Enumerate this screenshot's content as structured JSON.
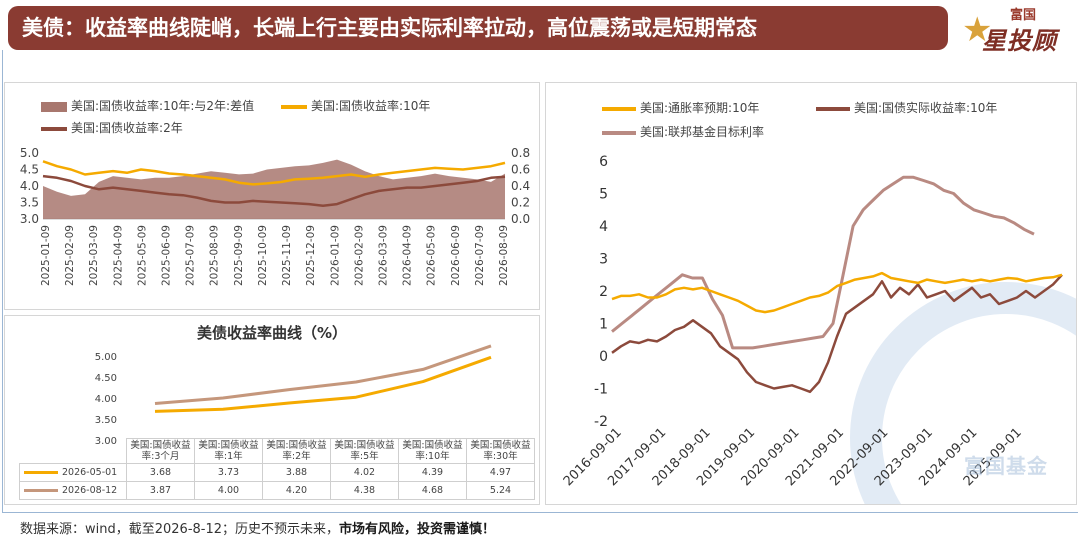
{
  "header": {
    "title": "美债：收益率曲线陡峭，长端上行主要由实际利率拉动，高位震荡或是短期常态"
  },
  "brand": {
    "small": "富国",
    "big": "星投顾"
  },
  "watermark": "富国基金",
  "footer": {
    "source": "数据来源：wind，截至2026-8-12；历史不预示未来，",
    "warning": "市场有风险，投资需谨慎！"
  },
  "colors": {
    "header_bg": "#8a3b32",
    "spread": "#a8776e",
    "yield10": "#f5aa00",
    "yield2": "#8c4a3c",
    "tips10": "#8c4a3c",
    "fed": "#b98a82",
    "curve_older": "#c5977c",
    "curve_newer": "#f5aa00"
  },
  "chart_data": [
    {
      "id": "top-left",
      "type": "line",
      "legend": [
        "美国:国债收益率:10年:与2年:差值",
        "美国:国债收益率:10年",
        "美国:国债收益率:2年"
      ],
      "x_ticks": [
        "2025-01-09",
        "2025-02-09",
        "2025-03-09",
        "2025-04-09",
        "2025-05-09",
        "2025-06-09",
        "2025-07-09",
        "2025-08-09",
        "2025-09-09",
        "2025-10-09",
        "2025-11-09",
        "2025-12-09",
        "2026-01-09",
        "2026-02-09",
        "2026-03-09",
        "2026-04-09",
        "2026-05-09",
        "2026-06-09",
        "2026-07-09",
        "2026-08-09"
      ],
      "yleft_ticks": [
        "5.0",
        "4.5",
        "4.0",
        "3.5",
        "3.0"
      ],
      "yright_ticks": [
        "0.8",
        "0.6",
        "0.4",
        "0.2",
        "0.0"
      ],
      "ylim_left": [
        3.0,
        5.0
      ],
      "ylim_right": [
        0.0,
        0.8
      ],
      "series": [
        {
          "name": "美国:国债收益率:10年:与2年:差值",
          "axis": "right",
          "type": "area",
          "values": [
            0.4,
            0.33,
            0.28,
            0.3,
            0.45,
            0.52,
            0.5,
            0.48,
            0.5,
            0.5,
            0.52,
            0.55,
            0.58,
            0.56,
            0.54,
            0.55,
            0.6,
            0.62,
            0.64,
            0.65,
            0.68,
            0.72,
            0.66,
            0.58,
            0.52,
            0.48,
            0.5,
            0.52,
            0.55,
            0.52,
            0.5,
            0.48,
            0.45,
            0.55
          ]
        },
        {
          "name": "美国:国债收益率:10年",
          "axis": "left",
          "type": "line",
          "values": [
            4.75,
            4.6,
            4.5,
            4.35,
            4.4,
            4.45,
            4.4,
            4.5,
            4.45,
            4.38,
            4.35,
            4.3,
            4.25,
            4.2,
            4.1,
            4.05,
            4.08,
            4.12,
            4.2,
            4.22,
            4.25,
            4.3,
            4.35,
            4.28,
            4.35,
            4.4,
            4.45,
            4.5,
            4.55,
            4.52,
            4.5,
            4.55,
            4.6,
            4.7
          ]
        },
        {
          "name": "美国:国债收益率:2年",
          "axis": "left",
          "type": "line",
          "values": [
            4.3,
            4.25,
            4.15,
            4.0,
            3.9,
            3.95,
            3.9,
            3.85,
            3.8,
            3.75,
            3.72,
            3.65,
            3.55,
            3.5,
            3.5,
            3.55,
            3.52,
            3.5,
            3.48,
            3.45,
            3.4,
            3.45,
            3.6,
            3.75,
            3.85,
            3.9,
            3.95,
            3.95,
            4.0,
            4.05,
            4.1,
            4.15,
            4.25,
            4.28
          ]
        }
      ]
    },
    {
      "id": "bottom-left",
      "type": "line",
      "title": "美债收益率曲线（%）",
      "y_ticks": [
        "5.00",
        "4.50",
        "4.00",
        "3.50",
        "3.00"
      ],
      "ylim": [
        3.0,
        5.0
      ],
      "categories": [
        "美国:国债收益率:3个月",
        "美国:国债收益率:1年",
        "美国:国债收益率:2年",
        "美国:国债收益率:5年",
        "美国:国债收益率:10年",
        "美国:国债收益率:30年"
      ],
      "series": [
        {
          "name": "2026-05-01",
          "values": [
            "3.68",
            "3.73",
            "3.88",
            "4.02",
            "4.39",
            "4.97"
          ]
        },
        {
          "name": "2026-08-12",
          "values": [
            "3.87",
            "4.00",
            "4.20",
            "4.38",
            "4.68",
            "5.24"
          ]
        }
      ]
    },
    {
      "id": "right",
      "type": "line",
      "legend": [
        "美国:通胀率预期:10年",
        "美国:国债实际收益率:10年",
        "美国:联邦基金目标利率"
      ],
      "x_ticks": [
        "2016-09-01",
        "2017-09-01",
        "2018-09-01",
        "2019-09-01",
        "2020-09-01",
        "2021-09-01",
        "2022-09-01",
        "2023-09-01",
        "2024-09-01",
        "2025-09-01"
      ],
      "y_ticks": [
        "6",
        "5",
        "4",
        "3",
        "2",
        "1",
        "0",
        "-1",
        "-2"
      ],
      "ylim": [
        -2,
        6
      ],
      "series": [
        {
          "name": "美国:通胀率预期:10年",
          "values": [
            1.75,
            1.85,
            1.85,
            1.9,
            1.8,
            1.8,
            1.9,
            2.05,
            2.1,
            2.05,
            2.1,
            2.0,
            1.9,
            1.8,
            1.7,
            1.55,
            1.4,
            1.35,
            1.4,
            1.5,
            1.6,
            1.7,
            1.8,
            1.85,
            1.95,
            2.15,
            2.25,
            2.35,
            2.4,
            2.45,
            2.55,
            2.4,
            2.35,
            2.3,
            2.25,
            2.35,
            2.3,
            2.25,
            2.3,
            2.35,
            2.3,
            2.35,
            2.3,
            2.35,
            2.4,
            2.38,
            2.3,
            2.35,
            2.4,
            2.42,
            2.5
          ]
        },
        {
          "name": "美国:国债实际收益率:10年",
          "values": [
            0.1,
            0.3,
            0.45,
            0.4,
            0.5,
            0.45,
            0.6,
            0.8,
            0.9,
            1.1,
            0.9,
            0.7,
            0.3,
            0.1,
            -0.1,
            -0.5,
            -0.8,
            -0.9,
            -1.0,
            -0.95,
            -0.9,
            -1.0,
            -1.1,
            -0.8,
            -0.2,
            0.6,
            1.3,
            1.5,
            1.7,
            1.9,
            2.3,
            1.8,
            2.1,
            1.9,
            2.2,
            1.8,
            1.9,
            2.0,
            1.7,
            1.9,
            2.1,
            1.8,
            1.9,
            1.6,
            1.7,
            1.8,
            2.0,
            1.8,
            2.0,
            2.2,
            2.5
          ]
        },
        {
          "name": "美国:联邦基金目标利率",
          "values": [
            0.75,
            1.0,
            1.25,
            1.5,
            1.75,
            2.0,
            2.25,
            2.5,
            2.4,
            2.4,
            1.75,
            1.25,
            0.25,
            0.25,
            0.25,
            0.3,
            0.35,
            0.4,
            0.45,
            0.5,
            0.55,
            0.6,
            1.0,
            2.5,
            4.0,
            4.5,
            4.8,
            5.1,
            5.3,
            5.5,
            5.5,
            5.4,
            5.3,
            5.1,
            5.0,
            4.7,
            4.5,
            4.4,
            4.3,
            4.25,
            4.1,
            3.9,
            3.75
          ]
        }
      ]
    }
  ]
}
